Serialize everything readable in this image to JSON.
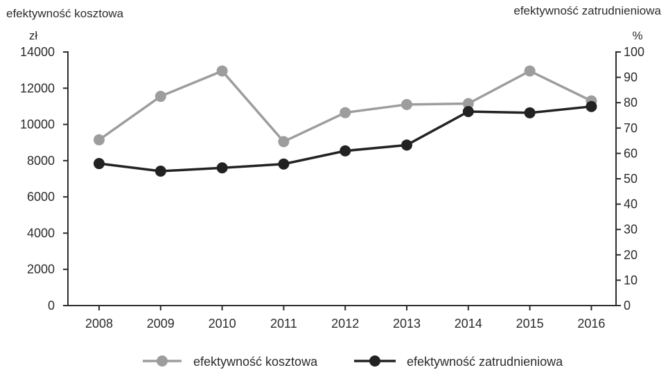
{
  "chart_data": {
    "type": "line",
    "categories": [
      "2008",
      "2009",
      "2010",
      "2011",
      "2012",
      "2013",
      "2014",
      "2015",
      "2016"
    ],
    "series": [
      {
        "name": "efektywność kosztowa",
        "axis": "left",
        "color": "#9d9d9d",
        "values": [
          9150,
          11550,
          12950,
          9050,
          10650,
          11100,
          11150,
          12950,
          11300
        ]
      },
      {
        "name": "efektywność zatrudnieniowa",
        "axis": "right",
        "color": "#222222",
        "values": [
          56,
          53,
          54.3,
          55.8,
          61,
          63.3,
          76.5,
          76,
          78.5
        ]
      }
    ],
    "left_axis": {
      "title": "efektywność kosztowa",
      "unit": "zł",
      "ylim": [
        0,
        14000
      ],
      "ticks": [
        "0",
        "2000",
        "4000",
        "6000",
        "8000",
        "10000",
        "12000",
        "14000"
      ]
    },
    "right_axis": {
      "title": "efektywność zatrudnieniowa",
      "unit": "%",
      "ylim": [
        0,
        100
      ],
      "ticks": [
        "0",
        "10",
        "20",
        "30",
        "40",
        "50",
        "60",
        "70",
        "80",
        "90",
        "100"
      ]
    },
    "grid": false,
    "legend_position": "bottom"
  }
}
